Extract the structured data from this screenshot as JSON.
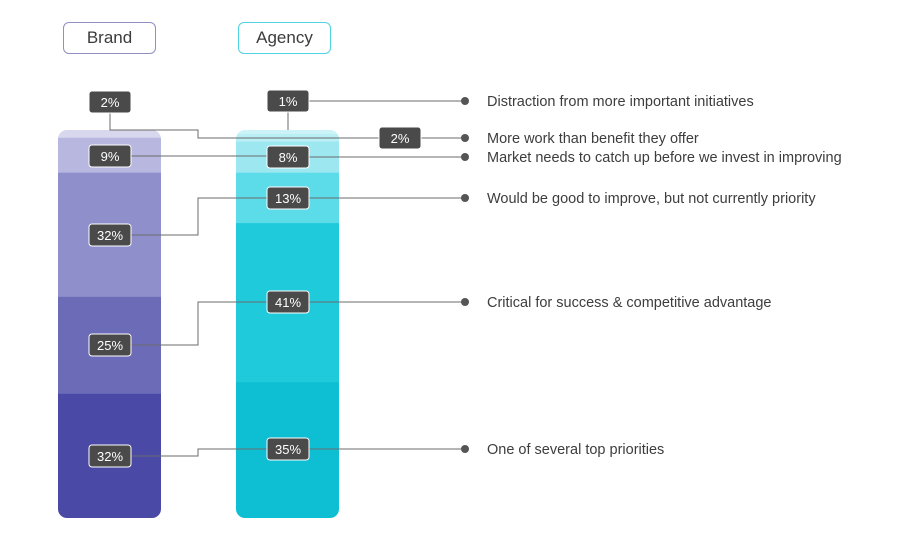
{
  "columns": {
    "brand_label": "Brand",
    "agency_label": "Agency"
  },
  "chart_data": {
    "type": "stacked-bar",
    "categories": [
      "Brand",
      "Agency"
    ],
    "series": [
      {
        "name": "Distraction from more important initiatives",
        "values": [
          2,
          1
        ],
        "colors": [
          "#d7d7ee",
          "#ccf3f7"
        ]
      },
      {
        "name": "More work than benefit they offer",
        "values": [
          null,
          2
        ],
        "colors": [
          null,
          "#b9eff5"
        ]
      },
      {
        "name": "Market needs to catch up before we invest in improving",
        "values": [
          9,
          8
        ],
        "colors": [
          "#b7b7df",
          "#9ce7f0"
        ]
      },
      {
        "name": "Would be good to improve, but not currently priority",
        "values": [
          32,
          13
        ],
        "colors": [
          "#8f8fcc",
          "#5cdbe8"
        ]
      },
      {
        "name": "Critical for success & competitive advantage",
        "values": [
          25,
          41
        ],
        "colors": [
          "#6b6bb8",
          "#1fcadb"
        ]
      },
      {
        "name": "One of several top priorities",
        "values": [
          32,
          35
        ],
        "colors": [
          "#4a49a6",
          "#0ebfd4"
        ]
      }
    ],
    "labels": {
      "brand": [
        "2%",
        "",
        "9%",
        "32%",
        "25%",
        "32%"
      ],
      "agency": [
        "1%",
        "2%",
        "8%",
        "13%",
        "41%",
        "35%"
      ]
    }
  }
}
